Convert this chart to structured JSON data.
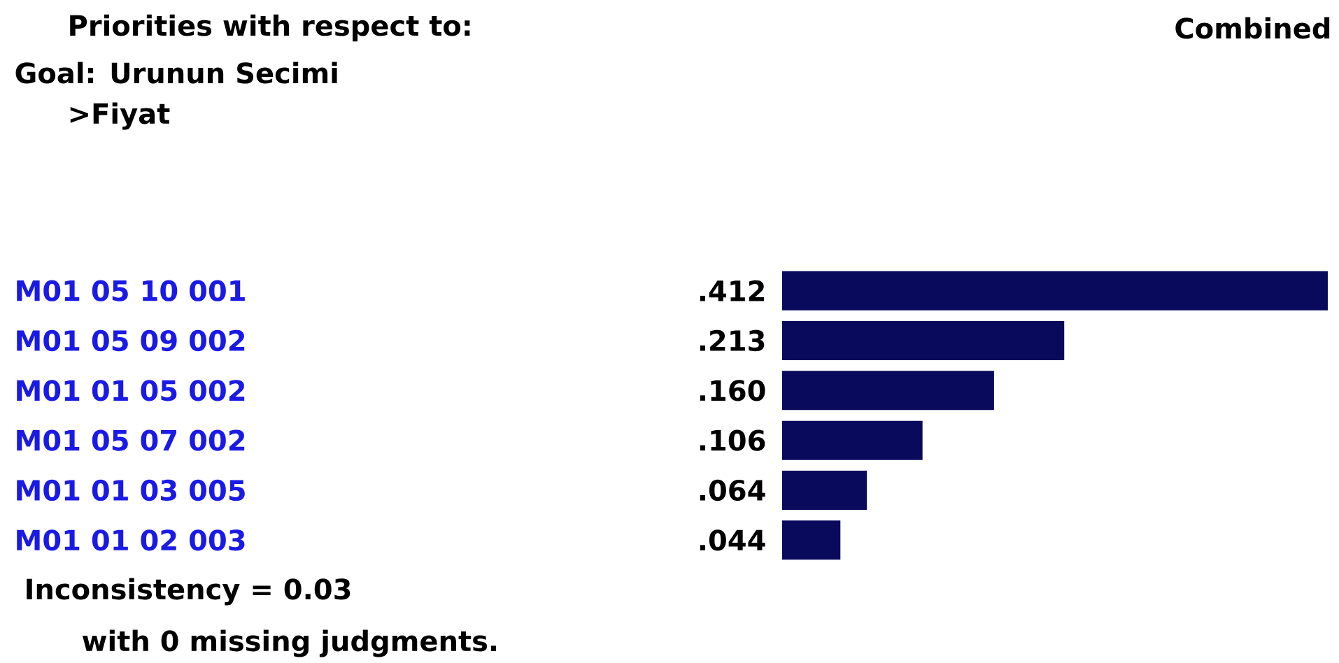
{
  "chart_data": {
    "type": "bar",
    "orientation": "horizontal",
    "title": "Priorities with respect to:",
    "subtitle": "Goal: Urunun Secimi",
    "categories": [
      "M01 05 10 001",
      "M01 05 09 002",
      "M01 01 05 002",
      "M01 05 07 002",
      "M01 01 03 005",
      "M01 01 02 003"
    ],
    "values": [
      0.412,
      0.213,
      0.16,
      0.106,
      0.064,
      0.044
    ],
    "value_labels": [
      ".412",
      ".213",
      ".160",
      ".106",
      ".064",
      ".044"
    ],
    "color": "#0a0a5c",
    "annotations": [
      ">Fiyat",
      "Combined",
      "Inconsistency = 0.03",
      "with 0  missing judgments."
    ]
  }
}
